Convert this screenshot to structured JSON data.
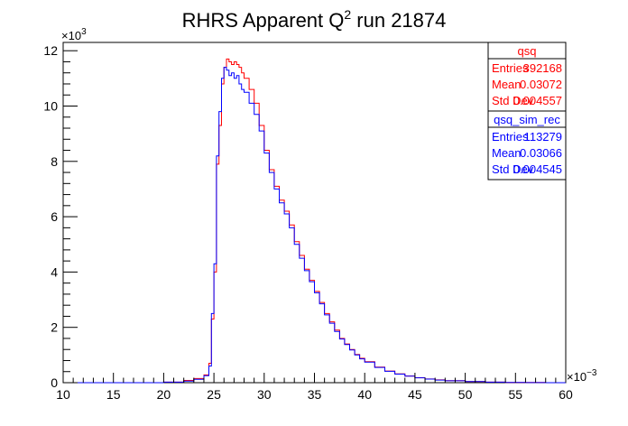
{
  "chart_data": {
    "type": "histogram",
    "title": {
      "main": "RHRS Apparent Q",
      "sup": "2",
      "rest": " run 21874"
    },
    "xlim": [
      10,
      60
    ],
    "ylim": [
      0,
      12300
    ],
    "x_ticks": [
      10,
      15,
      20,
      25,
      30,
      35,
      40,
      45,
      50,
      55,
      60
    ],
    "x_tick_labels": [
      "10",
      "15",
      "20",
      "25",
      "30",
      "35",
      "40",
      "45",
      "50",
      "55",
      "60"
    ],
    "y_ticks": [
      0,
      2000,
      4000,
      6000,
      8000,
      10000,
      12000
    ],
    "y_tick_labels": [
      "0",
      "2",
      "4",
      "6",
      "8",
      "10",
      "12"
    ],
    "x_multiplier": {
      "base": "×10",
      "exp": "−3"
    },
    "y_multiplier": {
      "base": "×10",
      "exp": "3"
    },
    "grid": false,
    "bin_width": 0.25,
    "series": [
      {
        "name": "qsq",
        "color": "#ff0000",
        "x": [
          10,
          20,
          22,
          23,
          24,
          24.5,
          24.75,
          25,
          25.25,
          25.5,
          25.75,
          26,
          26.25,
          26.5,
          26.75,
          27,
          27.25,
          27.5,
          27.75,
          28,
          28.5,
          29,
          29.5,
          30,
          30.5,
          31,
          31.5,
          32,
          32.5,
          33,
          33.5,
          34,
          34.5,
          35,
          35.5,
          36,
          36.5,
          37,
          37.5,
          38,
          38.5,
          39,
          39.5,
          40,
          41,
          42,
          43,
          44,
          45,
          46,
          47,
          48,
          50,
          52,
          54,
          56,
          58,
          60
        ],
        "y": [
          0,
          20,
          80,
          150,
          280,
          700,
          2300,
          4000,
          7900,
          9300,
          10800,
          11400,
          11700,
          11600,
          11500,
          11600,
          11500,
          11400,
          11200,
          11000,
          10600,
          10100,
          9300,
          8400,
          7700,
          7100,
          6600,
          6200,
          5700,
          5100,
          4600,
          4100,
          3700,
          3300,
          2900,
          2500,
          2200,
          1900,
          1600,
          1400,
          1200,
          1020,
          880,
          760,
          560,
          420,
          320,
          240,
          180,
          135,
          100,
          75,
          40,
          20,
          10,
          5,
          0,
          0
        ]
      },
      {
        "name": "qsq_sim_rec",
        "color": "#0000ff",
        "x": [
          10,
          20,
          22,
          23,
          24,
          24.5,
          24.75,
          25,
          25.25,
          25.5,
          25.75,
          26,
          26.25,
          26.5,
          26.75,
          27,
          27.25,
          27.5,
          27.75,
          28,
          28.5,
          29,
          29.5,
          30,
          30.5,
          31,
          31.5,
          32,
          32.5,
          33,
          33.5,
          34,
          34.5,
          35,
          35.5,
          36,
          36.5,
          37,
          37.5,
          38,
          38.5,
          39,
          39.5,
          40,
          41,
          42,
          43,
          44,
          45,
          46,
          47,
          48,
          50,
          52,
          54,
          56,
          58,
          60
        ],
        "y": [
          0,
          20,
          60,
          120,
          250,
          600,
          2500,
          4300,
          8200,
          9800,
          11000,
          11400,
          11300,
          11100,
          11200,
          11000,
          11100,
          10800,
          10600,
          10500,
          10100,
          9700,
          9100,
          8300,
          7600,
          7000,
          6500,
          6100,
          5600,
          5000,
          4500,
          4050,
          3650,
          3250,
          2850,
          2450,
          2150,
          1850,
          1580,
          1380,
          1180,
          1000,
          860,
          740,
          550,
          410,
          310,
          235,
          175,
          130,
          95,
          70,
          38,
          18,
          9,
          4,
          0,
          0
        ]
      }
    ],
    "stats_boxes": [
      {
        "name": "qsq",
        "color": "#ff0000",
        "rows": [
          {
            "label": "Entries",
            "value": "392168"
          },
          {
            "label": "Mean",
            "value": "0.03072"
          },
          {
            "label": "Std Dev",
            "value": "0.004557"
          }
        ]
      },
      {
        "name": "qsq_sim_rec",
        "color": "#0000ff",
        "rows": [
          {
            "label": "Entries",
            "value": "113279"
          },
          {
            "label": "Mean",
            "value": "0.03066"
          },
          {
            "label": "Std Dev",
            "value": "0.004545"
          }
        ]
      }
    ]
  }
}
